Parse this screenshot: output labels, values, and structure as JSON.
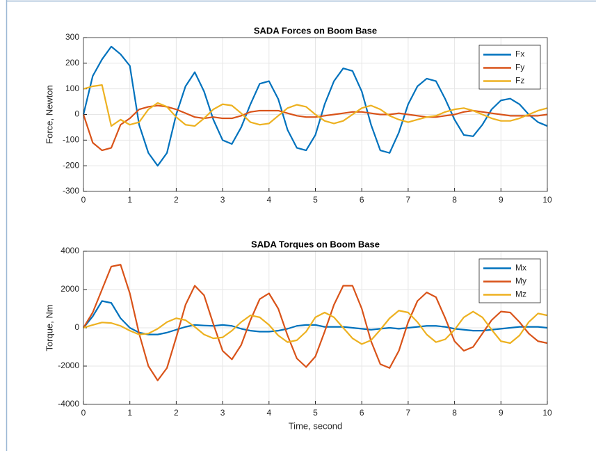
{
  "chart_data": [
    {
      "type": "line",
      "title": "SADA Forces on Boom Base",
      "y_label": "Force, Newton",
      "x": [
        0,
        0.2,
        0.4,
        0.6,
        0.8,
        1,
        1.2,
        1.4,
        1.6,
        1.8,
        2,
        2.2,
        2.4,
        2.6,
        2.8,
        3,
        3.2,
        3.4,
        3.6,
        3.8,
        4,
        4.2,
        4.4,
        4.6,
        4.8,
        5,
        5.2,
        5.4,
        5.6,
        5.8,
        6,
        6.2,
        6.4,
        6.6,
        6.8,
        7,
        7.2,
        7.4,
        7.6,
        7.8,
        8,
        8.2,
        8.4,
        8.6,
        8.8,
        9,
        9.2,
        9.4,
        9.6,
        9.8,
        10
      ],
      "series": [
        {
          "name": "Fx",
          "color": "#0072BD",
          "values": [
            0,
            150,
            215,
            265,
            235,
            190,
            -40,
            -150,
            -200,
            -150,
            0,
            110,
            165,
            90,
            -20,
            -100,
            -115,
            -50,
            40,
            120,
            130,
            60,
            -60,
            -130,
            -140,
            -80,
            40,
            130,
            180,
            170,
            90,
            -40,
            -140,
            -150,
            -70,
            40,
            110,
            140,
            130,
            60,
            -20,
            -80,
            -85,
            -40,
            20,
            55,
            62,
            40,
            0,
            -30,
            -45
          ]
        },
        {
          "name": "Fy",
          "color": "#D95319",
          "values": [
            0,
            -110,
            -140,
            -130,
            -40,
            -15,
            20,
            30,
            35,
            30,
            20,
            5,
            -10,
            -15,
            -10,
            -15,
            -15,
            -5,
            10,
            15,
            15,
            15,
            5,
            -5,
            -10,
            -10,
            -5,
            0,
            5,
            10,
            10,
            5,
            0,
            0,
            5,
            0,
            -5,
            -10,
            -10,
            -5,
            0,
            10,
            15,
            10,
            5,
            0,
            -5,
            -5,
            -5,
            -5,
            0
          ]
        },
        {
          "name": "Fz",
          "color": "#EDB120",
          "values": [
            100,
            110,
            115,
            -45,
            -20,
            -40,
            -30,
            20,
            45,
            30,
            -10,
            -40,
            -45,
            -15,
            20,
            40,
            35,
            5,
            -30,
            -40,
            -35,
            -5,
            25,
            38,
            30,
            0,
            -25,
            -35,
            -25,
            0,
            25,
            35,
            20,
            -5,
            -20,
            -30,
            -20,
            -10,
            -5,
            10,
            20,
            25,
            15,
            0,
            -15,
            -25,
            -25,
            -15,
            0,
            15,
            25
          ]
        }
      ],
      "xlim": [
        0,
        10
      ],
      "xticks": [
        0,
        1,
        2,
        3,
        4,
        5,
        6,
        7,
        8,
        9,
        10
      ],
      "ylim": [
        -300,
        300
      ],
      "yticks": [
        -300,
        -200,
        -100,
        0,
        100,
        200,
        300
      ],
      "grid": true,
      "legend": "northeast"
    },
    {
      "type": "line",
      "title": "SADA Torques on Boom Base",
      "x_label": "Time, second",
      "y_label": "Torque, Nm",
      "x": [
        0,
        0.2,
        0.4,
        0.6,
        0.8,
        1,
        1.2,
        1.4,
        1.6,
        1.8,
        2,
        2.2,
        2.4,
        2.6,
        2.8,
        3,
        3.2,
        3.4,
        3.6,
        3.8,
        4,
        4.2,
        4.4,
        4.6,
        4.8,
        5,
        5.2,
        5.4,
        5.6,
        5.8,
        6,
        6.2,
        6.4,
        6.6,
        6.8,
        7,
        7.2,
        7.4,
        7.6,
        7.8,
        8,
        8.2,
        8.4,
        8.6,
        8.8,
        9,
        9.2,
        9.4,
        9.6,
        9.8,
        10
      ],
      "series": [
        {
          "name": "Mx",
          "color": "#0072BD",
          "values": [
            0,
            600,
            1400,
            1300,
            500,
            0,
            -250,
            -350,
            -350,
            -250,
            -100,
            50,
            150,
            120,
            100,
            150,
            100,
            -50,
            -150,
            -200,
            -200,
            -150,
            -50,
            100,
            150,
            150,
            50,
            50,
            50,
            0,
            -50,
            -100,
            -50,
            0,
            -50,
            0,
            50,
            100,
            100,
            50,
            -50,
            -100,
            -150,
            -150,
            -100,
            -50,
            0,
            50,
            50,
            50,
            0
          ]
        },
        {
          "name": "My",
          "color": "#D95319",
          "values": [
            0,
            800,
            2000,
            3200,
            3300,
            1800,
            -300,
            -2000,
            -2750,
            -2100,
            -500,
            1200,
            2200,
            1700,
            200,
            -1200,
            -1650,
            -900,
            400,
            1500,
            1800,
            1000,
            -400,
            -1600,
            -2050,
            -1500,
            -200,
            1200,
            2200,
            2200,
            1000,
            -700,
            -1900,
            -2100,
            -1200,
            300,
            1400,
            1850,
            1600,
            500,
            -700,
            -1200,
            -1000,
            -300,
            400,
            850,
            800,
            300,
            -300,
            -700,
            -800
          ]
        },
        {
          "name": "Mz",
          "color": "#EDB120",
          "values": [
            0,
            150,
            280,
            250,
            100,
            -150,
            -350,
            -300,
            -50,
            300,
            500,
            400,
            50,
            -350,
            -550,
            -500,
            -150,
            300,
            650,
            550,
            150,
            -400,
            -750,
            -650,
            -200,
            550,
            800,
            550,
            0,
            -550,
            -850,
            -650,
            -100,
            500,
            900,
            800,
            300,
            -350,
            -750,
            -600,
            -100,
            550,
            850,
            550,
            -100,
            -700,
            -800,
            -400,
            300,
            750,
            650
          ]
        }
      ],
      "xlim": [
        0,
        10
      ],
      "xticks": [
        0,
        1,
        2,
        3,
        4,
        5,
        6,
        7,
        8,
        9,
        10
      ],
      "ylim": [
        -4000,
        4000
      ],
      "yticks": [
        -4000,
        -2000,
        0,
        2000,
        4000
      ],
      "grid": true,
      "legend": "northeast"
    }
  ]
}
